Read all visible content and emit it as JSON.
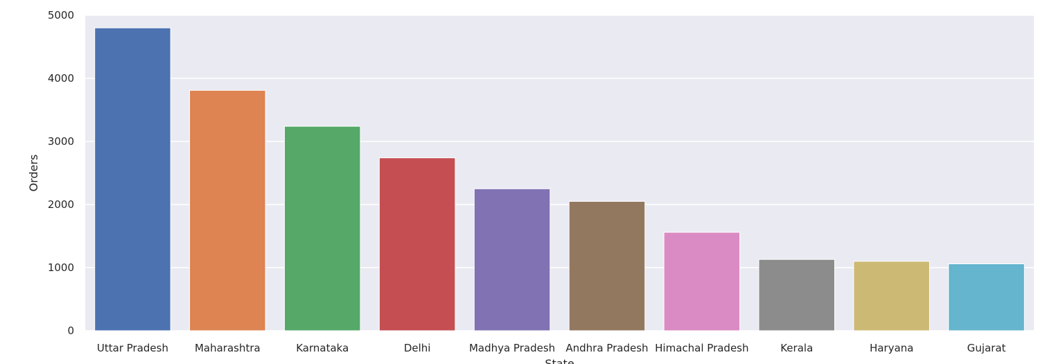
{
  "chart_data": {
    "type": "bar",
    "categories": [
      "Uttar Pradesh",
      "Maharashtra",
      "Karnataka",
      "Delhi",
      "Madhya Pradesh",
      "Andhra Pradesh",
      "Himachal Pradesh",
      "Kerala",
      "Haryana",
      "Gujarat"
    ],
    "values": [
      4800,
      3810,
      3240,
      2740,
      2250,
      2050,
      1560,
      1130,
      1100,
      1060
    ],
    "colors": [
      "#4c72b0",
      "#dd8452",
      "#55a868",
      "#c44e52",
      "#8172b3",
      "#937860",
      "#da8bc3",
      "#8c8c8c",
      "#ccb974",
      "#64b5cd"
    ],
    "xlabel": "State",
    "ylabel": "Orders",
    "ylim": [
      0,
      5000
    ],
    "yticks": [
      0,
      1000,
      2000,
      3000,
      4000,
      5000
    ],
    "grid": true,
    "background": "#eaeaf2"
  }
}
